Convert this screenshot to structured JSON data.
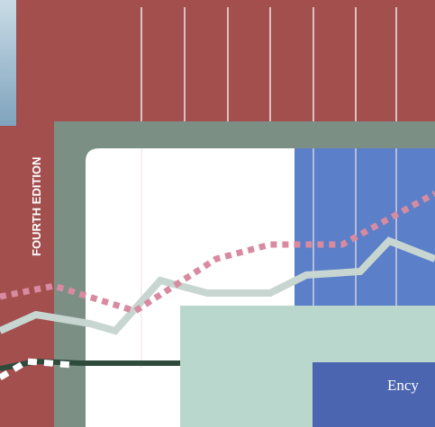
{
  "cover": {
    "edition": "FOURTH EDITION",
    "title_fragment": "Ency"
  }
}
